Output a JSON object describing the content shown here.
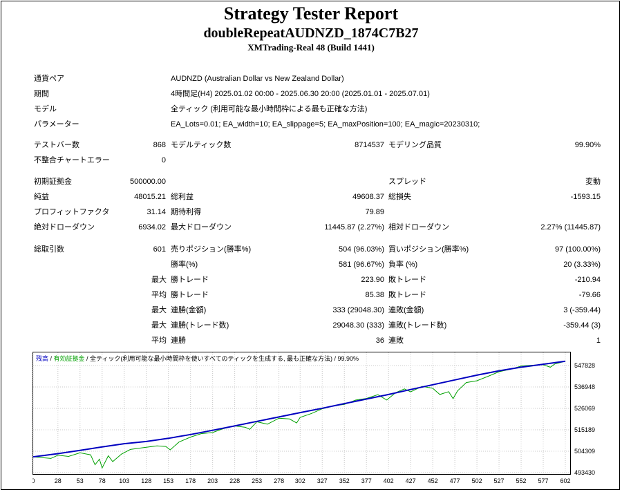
{
  "header": {
    "title": "Strategy Tester Report",
    "ea_name": "doubleRepeatAUDNZD_1874C7B27",
    "server": "XMTrading-Real 48 (Build 1441)"
  },
  "settings": [
    {
      "label": "通貨ペア",
      "value": "AUDNZD (Australian Dollar vs New Zealand Dollar)"
    },
    {
      "label": "期間",
      "value": "4時間足(H4) 2025.01.02 00:00 - 2025.06.30 20:00 (2025.01.01 - 2025.07.01)"
    },
    {
      "label": "モデル",
      "value": "全ティック (利用可能な最小時間枠による最も正確な方法)"
    },
    {
      "label": "パラメーター",
      "value": "EA_Lots=0.01; EA_width=10; EA_slippage=5; EA_maxPosition=100; EA_magic=20230310;"
    }
  ],
  "stats": {
    "test_bars": {
      "label": "テストバー数",
      "value": "868"
    },
    "model_ticks": {
      "label": "モデルティック数",
      "value": "8714537"
    },
    "model_quality": {
      "label": "モデリング品質",
      "value": "99.90%"
    },
    "mismatch_errors": {
      "label": "不整合チャートエラー",
      "value": "0"
    },
    "initial_deposit": {
      "label": "初期証拠金",
      "value": "500000.00"
    },
    "spread": {
      "label": "スプレッド",
      "value": "変動"
    },
    "net_profit": {
      "label": "純益",
      "value": "48015.21"
    },
    "gross_profit": {
      "label": "総利益",
      "value": "49608.37"
    },
    "gross_loss": {
      "label": "総損失",
      "value": "-1593.15"
    },
    "profit_factor": {
      "label": "プロフィットファクタ",
      "value": "31.14"
    },
    "expected_payoff": {
      "label": "期待利得",
      "value": "79.89"
    },
    "abs_drawdown": {
      "label": "絶対ドローダウン",
      "value": "6934.02"
    },
    "max_drawdown": {
      "label": "最大ドローダウン",
      "value": "11445.87 (2.27%)"
    },
    "rel_drawdown": {
      "label": "相対ドローダウン",
      "value": "2.27% (11445.87)"
    },
    "total_trades": {
      "label": "総取引数",
      "value": "601"
    },
    "short_positions": {
      "label": "売りポジション(勝率%)",
      "value": "504 (96.03%)"
    },
    "long_positions": {
      "label": "買いポジション(勝率%)",
      "value": "97 (100.00%)"
    },
    "win_rate": {
      "label": "勝率(%)",
      "value": "581 (96.67%)"
    },
    "loss_rate": {
      "label": "負率 (%)",
      "value": "20 (3.33%)"
    },
    "max_label": "最大",
    "avg_label": "平均",
    "largest_win": {
      "label": "勝トレード",
      "value": "223.90"
    },
    "largest_loss": {
      "label": "敗トレード",
      "value": "-210.94"
    },
    "avg_win": {
      "label": "勝トレード",
      "value": "85.38"
    },
    "avg_loss": {
      "label": "敗トレード",
      "value": "-79.66"
    },
    "max_consec_wins_money": {
      "label": "連勝(金額)",
      "value": "333 (29048.30)"
    },
    "max_consec_losses_money": {
      "label": "連敗(金額)",
      "value": "3 (-359.44)"
    },
    "max_consec_wins_trades": {
      "label": "連勝(トレード数)",
      "value": "29048.30 (333)"
    },
    "max_consec_losses_trades": {
      "label": "連敗(トレード数)",
      "value": "-359.44 (3)"
    },
    "avg_consec_wins": {
      "label": "連勝",
      "value": "36"
    },
    "avg_consec_losses": {
      "label": "連敗",
      "value": "1"
    }
  },
  "chart_data": {
    "type": "line",
    "legend_parts": [
      "残高",
      " / ",
      "有効証拠金",
      " / 全ティック(利用可能な最小時間枠を使いすべてのティックを生成する, 最も正確な方法) / 99.90%"
    ],
    "x_ticks": [
      0,
      28,
      53,
      78,
      103,
      128,
      153,
      178,
      203,
      228,
      253,
      278,
      302,
      327,
      352,
      377,
      402,
      427,
      452,
      477,
      502,
      527,
      552,
      577,
      602
    ],
    "y_ticks": [
      "547828",
      "536948",
      "526069",
      "515189",
      "504309",
      "493430"
    ],
    "xlim": [
      0,
      602
    ],
    "ylim": [
      493430,
      550000
    ],
    "colors": {
      "balance": "#0000c0",
      "equity": "#00a000"
    },
    "series": [
      {
        "name": "残高",
        "x": [
          0,
          28,
          53,
          78,
          103,
          128,
          153,
          178,
          203,
          228,
          253,
          278,
          302,
          327,
          352,
          377,
          402,
          427,
          452,
          477,
          502,
          527,
          552,
          577,
          602
        ],
        "y": [
          500000,
          501600,
          503200,
          505000,
          506600,
          507700,
          509300,
          511200,
          513300,
          515500,
          517800,
          520000,
          522200,
          524400,
          526700,
          529000,
          531300,
          533800,
          536200,
          538600,
          541000,
          543200,
          545000,
          546500,
          548000
        ]
      },
      {
        "name": "有効証拠金",
        "x": [
          0,
          20,
          28,
          40,
          53,
          65,
          70,
          75,
          78,
          85,
          90,
          100,
          110,
          125,
          140,
          150,
          155,
          165,
          178,
          190,
          203,
          215,
          228,
          240,
          245,
          253,
          265,
          278,
          290,
          298,
          302,
          315,
          327,
          340,
          352,
          365,
          377,
          390,
          400,
          410,
          420,
          427,
          440,
          452,
          460,
          470,
          475,
          480,
          490,
          502,
          515,
          527,
          540,
          552,
          565,
          577,
          585,
          590,
          602
        ],
        "y": [
          500000,
          499200,
          500800,
          500200,
          502000,
          501000,
          496000,
          498800,
          494400,
          500500,
          497600,
          501400,
          503700,
          504600,
          505500,
          505200,
          503500,
          507400,
          509900,
          511600,
          512200,
          514100,
          515500,
          514800,
          513800,
          517600,
          516400,
          519400,
          519000,
          517000,
          519800,
          521800,
          524100,
          525600,
          526300,
          528500,
          529300,
          531200,
          528500,
          532200,
          534100,
          532600,
          535400,
          534400,
          531300,
          532700,
          529200,
          533100,
          537300,
          538200,
          540500,
          542700,
          544000,
          545600,
          546000,
          546200,
          545000,
          546600,
          548000
        ]
      }
    ]
  }
}
